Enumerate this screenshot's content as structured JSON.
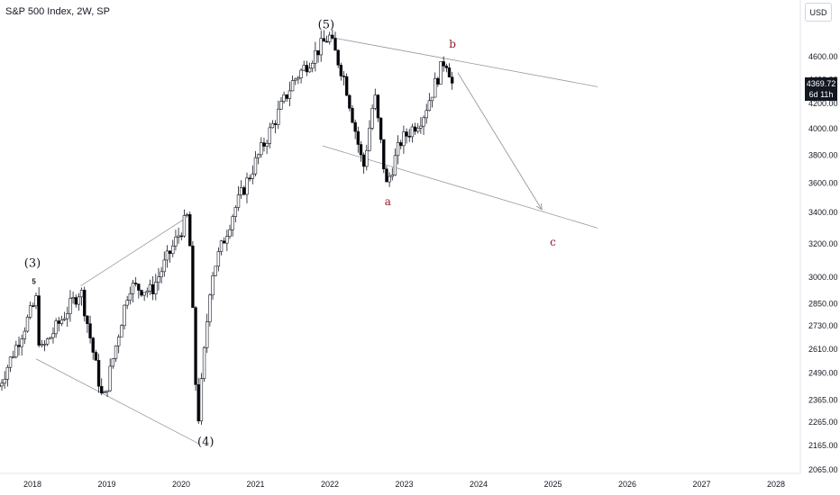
{
  "header": {
    "title": "S&P 500 Index, 2W, SP",
    "currency": "USD",
    "last_price": "4369.72",
    "countdown": "6d 11h"
  },
  "colors": {
    "up_candle": "#ffffff",
    "down_candle": "#000000",
    "wick": "#131722",
    "trendline": "#9598a1",
    "wave_label_red": "#8b1c2c",
    "price_tag_bg": "#131722"
  },
  "chart_data": {
    "type": "candlestick",
    "symbol": "S&P 500 Index",
    "interval": "2W",
    "exchange": "SP",
    "scale": "log",
    "y_ticks": [
      4600,
      4400,
      4200,
      4000,
      3800,
      3600,
      3400,
      3200,
      3000,
      2850,
      2730,
      2610,
      2490,
      2365,
      2265,
      2165,
      2065
    ],
    "y_tick_labels": [
      "4600.00",
      "4400.00",
      "4200.00",
      "4000.00",
      "3800.00",
      "3600.00",
      "3400.00",
      "3200.00",
      "3000.00",
      "2850.00",
      "2730.00",
      "2610.00",
      "2490.00",
      "2365.00",
      "2265.00",
      "2165.00",
      "2065.00"
    ],
    "x_ticks": [
      "2018",
      "2019",
      "2020",
      "2021",
      "2022",
      "2023",
      "2024",
      "2025",
      "2026",
      "2027",
      "2028"
    ],
    "x_tick_values": [
      2018,
      2019,
      2020,
      2021,
      2022,
      2023,
      2024,
      2025,
      2026,
      2027,
      2028
    ],
    "last_close": 4369.72,
    "anchors": [
      {
        "t": 2017.55,
        "v": 2430
      },
      {
        "t": 2018.05,
        "v": 2872
      },
      {
        "t": 2018.1,
        "v": 2590
      },
      {
        "t": 2018.65,
        "v": 2930
      },
      {
        "t": 2018.95,
        "v": 2350
      },
      {
        "t": 2019.3,
        "v": 2950
      },
      {
        "t": 2019.6,
        "v": 2920
      },
      {
        "t": 2020.1,
        "v": 3390
      },
      {
        "t": 2020.22,
        "v": 2240
      },
      {
        "t": 2020.4,
        "v": 3000
      },
      {
        "t": 2020.7,
        "v": 3400
      },
      {
        "t": 2021.0,
        "v": 3750
      },
      {
        "t": 2021.5,
        "v": 4380
      },
      {
        "t": 2021.99,
        "v": 4790
      },
      {
        "t": 2022.2,
        "v": 4400
      },
      {
        "t": 2022.45,
        "v": 3700
      },
      {
        "t": 2022.6,
        "v": 4280
      },
      {
        "t": 2022.76,
        "v": 3580
      },
      {
        "t": 2022.95,
        "v": 3900
      },
      {
        "t": 2023.25,
        "v": 4100
      },
      {
        "t": 2023.55,
        "v": 4590
      },
      {
        "t": 2023.66,
        "v": 4370
      }
    ],
    "wave_labels": [
      {
        "label": "(3)",
        "t": 2018.0,
        "v": 3060
      },
      {
        "label": "5",
        "t": 2018.02,
        "v": 2960
      },
      {
        "label": "(4)",
        "t": 2020.33,
        "v": 2165
      },
      {
        "label": "(5)",
        "t": 2021.95,
        "v": 4860
      },
      {
        "label": "a",
        "t": 2022.78,
        "v": 3450
      },
      {
        "label": "b",
        "t": 2023.65,
        "v": 4680
      },
      {
        "label": "c",
        "t": 2025.0,
        "v": 3190
      }
    ],
    "trendlines": [
      {
        "from": {
          "t": 2018.05,
          "v": 2560
        },
        "to": {
          "t": 2020.25,
          "v": 2170
        }
      },
      {
        "from": {
          "t": 2018.65,
          "v": 2950
        },
        "to": {
          "t": 2020.05,
          "v": 3360
        }
      },
      {
        "from": {
          "t": 2021.98,
          "v": 4780
        },
        "to": {
          "t": 2025.6,
          "v": 4340
        }
      },
      {
        "from": {
          "t": 2021.9,
          "v": 3870
        },
        "to": {
          "t": 2025.6,
          "v": 3300
        }
      }
    ],
    "projection_arrow": {
      "from": {
        "t": 2023.72,
        "v": 4460
      },
      "to": {
        "t": 2024.85,
        "v": 3420
      }
    }
  }
}
